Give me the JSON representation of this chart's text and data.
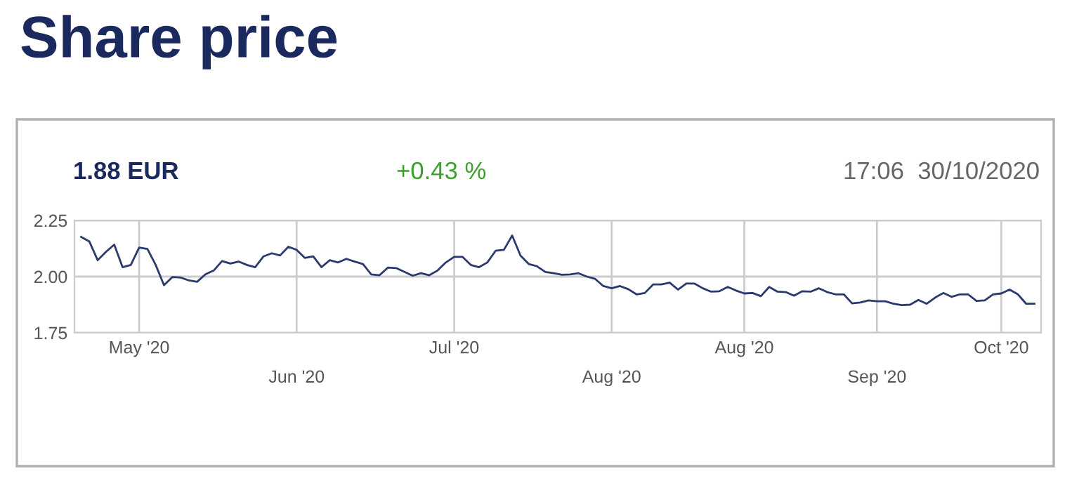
{
  "chart_data": {
    "type": "line",
    "title": "Share price",
    "annotations": [
      "1.88 EUR",
      "+0.43 %",
      "17:06  30/10/2020"
    ],
    "categories": [
      null,
      null,
      null,
      null,
      null,
      null,
      null,
      "May '20",
      null,
      null,
      null,
      null,
      null,
      null,
      null,
      null,
      null,
      null,
      null,
      null,
      null,
      null,
      null,
      null,
      null,
      null,
      "Jun '20",
      null,
      null,
      null,
      null,
      null,
      null,
      null,
      null,
      null,
      null,
      null,
      null,
      null,
      null,
      null,
      null,
      null,
      null,
      "Jul '20",
      null,
      null,
      null,
      null,
      null,
      null,
      null,
      null,
      null,
      null,
      null,
      null,
      null,
      null,
      null,
      null,
      null,
      null,
      "Aug '20",
      null,
      null,
      null,
      null,
      null,
      null,
      null,
      null,
      null,
      null,
      null,
      null,
      null,
      null,
      null,
      "Aug '20",
      null,
      null,
      null,
      null,
      null,
      null,
      null,
      null,
      null,
      null,
      null,
      null,
      null,
      null,
      null,
      "Sep '20",
      null,
      null,
      null,
      null,
      null,
      null,
      null,
      null,
      null,
      null,
      null,
      null,
      null,
      null,
      "Oct '20",
      null,
      null,
      null,
      null
    ],
    "series": [
      {
        "color": "#2b3a6e",
        "values": [
          2.177,
          2.156,
          2.073,
          2.11,
          2.142,
          2.042,
          2.052,
          2.129,
          2.123,
          2.052,
          1.962,
          1.998,
          1.996,
          1.983,
          1.977,
          2.01,
          2.027,
          2.069,
          2.058,
          2.067,
          2.052,
          2.042,
          2.09,
          2.104,
          2.094,
          2.133,
          2.119,
          2.083,
          2.09,
          2.042,
          2.073,
          2.063,
          2.079,
          2.067,
          2.056,
          2.01,
          2.006,
          2.04,
          2.038,
          2.021,
          2.004,
          2.015,
          2.006,
          2.027,
          2.063,
          2.088,
          2.088,
          2.052,
          2.042,
          2.063,
          2.115,
          2.119,
          2.183,
          2.094,
          2.056,
          2.046,
          2.021,
          2.015,
          2.008,
          2.01,
          2.015,
          2.0,
          1.99,
          1.958,
          1.948,
          1.958,
          1.944,
          1.921,
          1.927,
          1.965,
          1.965,
          1.973,
          1.942,
          1.969,
          1.969,
          1.948,
          1.933,
          1.935,
          1.954,
          1.938,
          1.925,
          1.927,
          1.913,
          1.954,
          1.933,
          1.931,
          1.915,
          1.935,
          1.933,
          1.948,
          1.931,
          1.921,
          1.921,
          1.881,
          1.885,
          1.894,
          1.89,
          1.89,
          1.879,
          1.873,
          1.875,
          1.896,
          1.879,
          1.906,
          1.927,
          1.91,
          1.921,
          1.921,
          1.892,
          1.894,
          1.921,
          1.925,
          1.942,
          1.921,
          1.879,
          1.879
        ]
      }
    ],
    "ylim": [
      1.75,
      2.25
    ],
    "yticks": [
      1.75,
      {
        "value": 2.0,
        "label": "2.00"
      },
      2.25
    ],
    "grid": true
  }
}
